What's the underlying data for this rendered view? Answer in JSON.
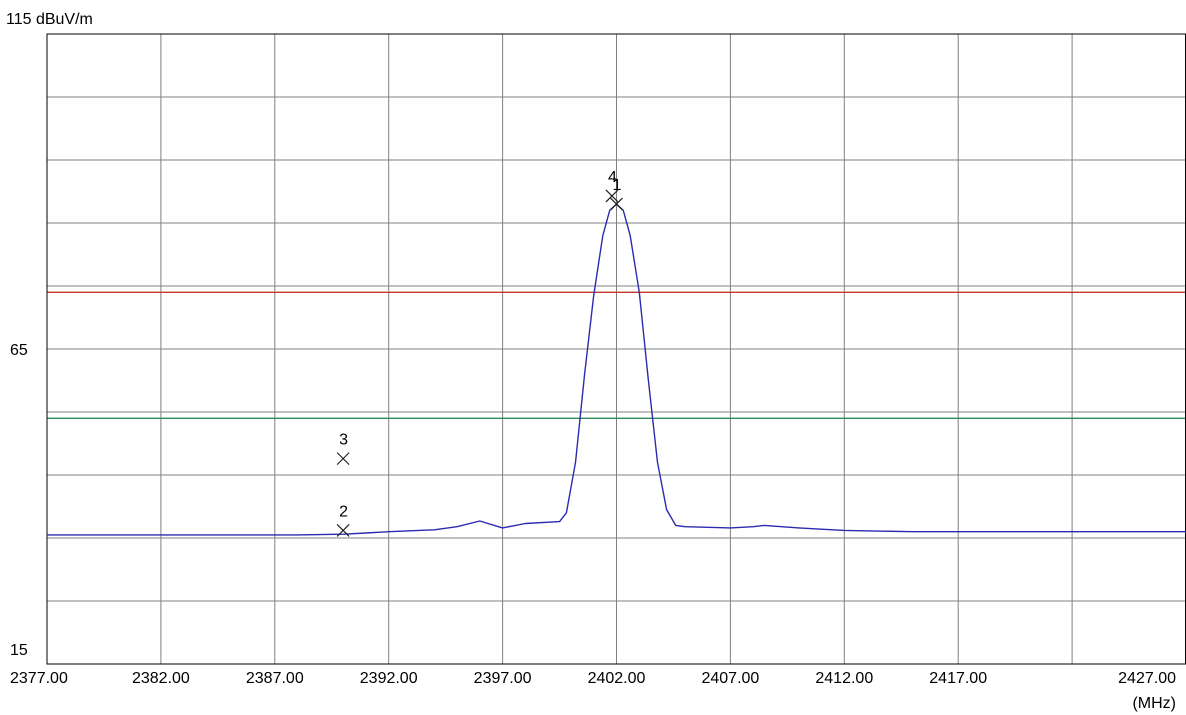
{
  "chart_data": {
    "type": "line",
    "y_top_label": "115 dBuV/m",
    "y_mid_label": "65",
    "y_bottom_label": "15",
    "x_unit_label": "(MHz)",
    "ylim": [
      15,
      115
    ],
    "xlim": [
      2377,
      2427
    ],
    "x_tick_labels": [
      "2377.00",
      "2382.00",
      "2387.00",
      "2392.00",
      "2397.00",
      "2402.00",
      "2407.00",
      "2412.00",
      "2417.00",
      "2427.00"
    ],
    "x_tick_values": [
      2377,
      2382,
      2387,
      2392,
      2397,
      2402,
      2407,
      2412,
      2417,
      2427
    ],
    "grid": true,
    "limit_lines": [
      {
        "value": 74,
        "color": "#c0392b"
      },
      {
        "value": 54,
        "color": "#2e8b57"
      }
    ],
    "series": [
      {
        "color": "#2b2bb0",
        "x": [
          2377,
          2380,
          2385,
          2388,
          2390,
          2391,
          2392,
          2394,
          2395,
          2396,
          2397,
          2398,
          2399.5,
          2399.8,
          2400.2,
          2400.6,
          2401.0,
          2401.4,
          2401.7,
          2402.0,
          2402.3,
          2402.6,
          2403.0,
          2403.4,
          2403.8,
          2404.2,
          2404.6,
          2405.0,
          2406,
          2407,
          2408,
          2408.5,
          2410,
          2412,
          2415,
          2420,
          2425,
          2427
        ],
        "y": [
          35.5,
          35.5,
          35.5,
          35.5,
          35.6,
          35.8,
          36.0,
          36.3,
          36.8,
          37.7,
          36.6,
          37.3,
          37.6,
          39.0,
          47.0,
          61.0,
          73.5,
          83.0,
          87.0,
          88.0,
          87.0,
          83.0,
          74.0,
          60.0,
          47.0,
          39.5,
          37.0,
          36.8,
          36.7,
          36.6,
          36.8,
          37.0,
          36.6,
          36.2,
          36.0,
          36.0,
          36.0,
          36.0
        ]
      }
    ],
    "markers": [
      {
        "label": "1",
        "x": 2402.0,
        "y": 88.0
      },
      {
        "label": "2",
        "x": 2390.0,
        "y": 36.2
      },
      {
        "label": "3",
        "x": 2390.0,
        "y": 47.6
      },
      {
        "label": "4",
        "x": 2401.8,
        "y": 89.3
      }
    ]
  }
}
